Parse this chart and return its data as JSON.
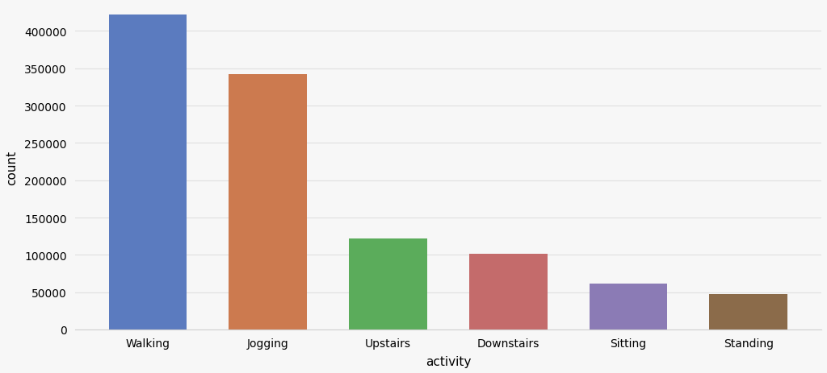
{
  "categories": [
    "Walking",
    "Jogging",
    "Upstairs",
    "Downstairs",
    "Sitting",
    "Standing"
  ],
  "values": [
    422000,
    342000,
    122000,
    101000,
    61000,
    48000
  ],
  "bar_colors": [
    "#5b7bbf",
    "#cc7a4f",
    "#5bac5b",
    "#c46b6b",
    "#8b7bb5",
    "#8b6b4a"
  ],
  "xlabel": "activity",
  "ylabel": "count",
  "ylim": [
    0,
    435000
  ],
  "yticks": [
    0,
    50000,
    100000,
    150000,
    200000,
    250000,
    300000,
    350000,
    400000
  ],
  "background_color": "#f7f7f7",
  "grid_color": "#e0e0e0",
  "bar_width": 0.65,
  "xlabel_fontsize": 11,
  "ylabel_fontsize": 11,
  "tick_fontsize": 10
}
